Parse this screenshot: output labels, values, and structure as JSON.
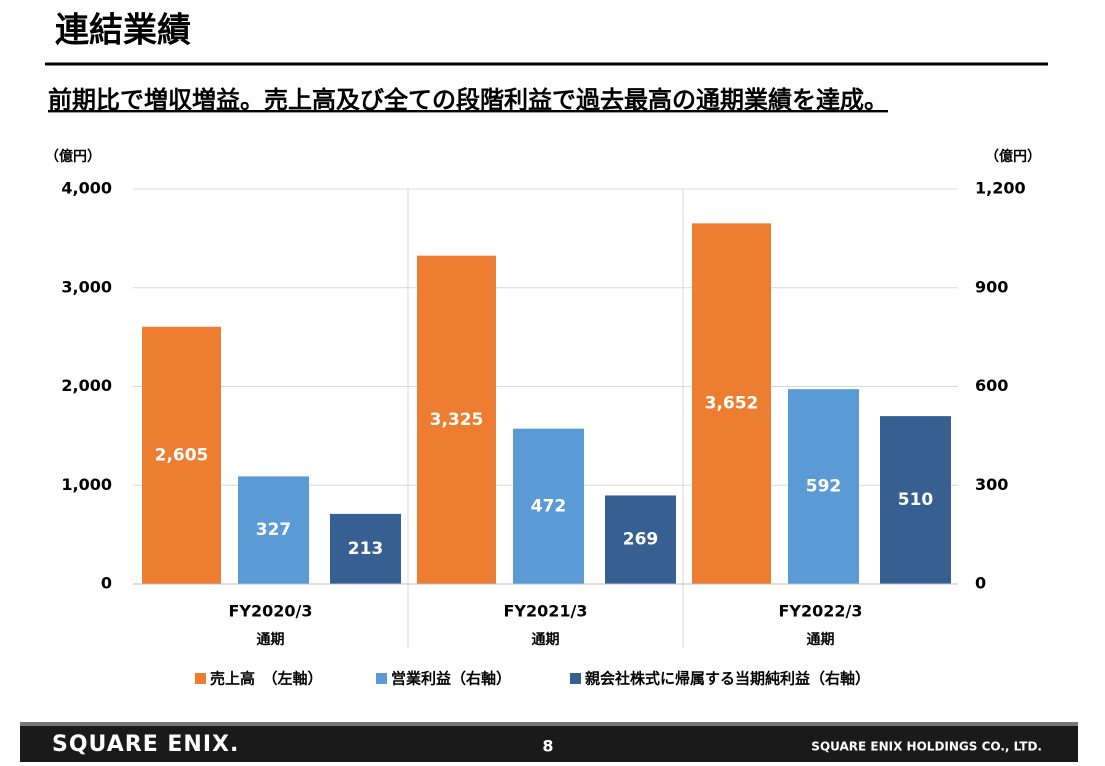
{
  "chart_data": {
    "type": "bar",
    "title": "連結業績",
    "subtitle": "前期比で増収増益。売上高及び全ての段階利益で過去最高の通期業績を達成。",
    "y_unit_label": "（億円）",
    "y2_unit_label": "（億円）",
    "categories": [
      "FY2020/3",
      "FY2021/3",
      "FY2022/3"
    ],
    "category_sublabels": [
      "通期",
      "通期",
      "通期"
    ],
    "series": [
      {
        "name": "売上高　（左軸）",
        "color": "#ED7D31",
        "values": [
          2605,
          3325,
          3652
        ],
        "value_labels": [
          "2,605",
          "3,325",
          "3,652"
        ]
      },
      {
        "name": "営業利益（右軸）",
        "color": "#5B9BD5",
        "axis": "y2",
        "values": [
          327,
          472,
          592
        ]
      },
      {
        "name": "親会社株式に帰属する当期純利益（右軸）",
        "color": "#366092",
        "axis": "y2",
        "values": [
          213,
          269,
          510
        ]
      }
    ],
    "ylim": [
      0,
      4000
    ],
    "yticks": [
      0,
      {
        "value": 1000,
        "label": "1,000"
      },
      {
        "value": 2000,
        "label": "2,000"
      },
      {
        "value": 3000,
        "label": "3,000"
      },
      {
        "value": 4000,
        "label": "4,000"
      }
    ],
    "y2lim": [
      0,
      1200
    ],
    "y2ticks": [
      0,
      300,
      600,
      900,
      {
        "value": 1200,
        "label": "1,200"
      }
    ],
    "grid": true,
    "legend": "bottom"
  },
  "footer": {
    "logo": "SQUARE ENIX.",
    "page": "8",
    "company": "SQUARE ENIX HOLDINGS CO., LTD."
  }
}
